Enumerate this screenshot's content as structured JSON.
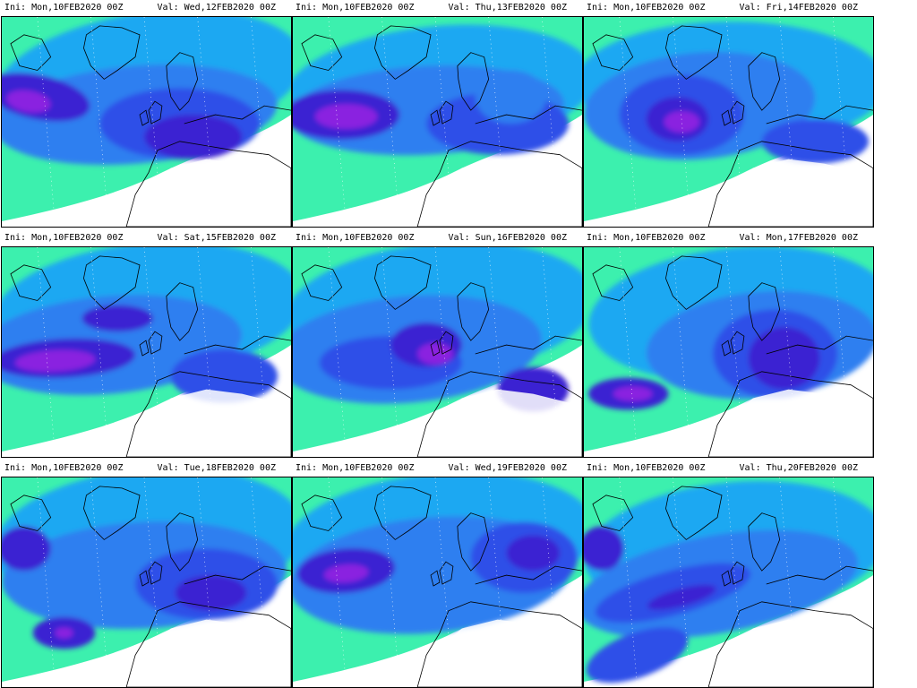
{
  "colors": {
    "background": "#ffffff",
    "frame": "#000000",
    "coast": "#000000",
    "scale": [
      "#3cf0ae",
      "#22d6e6",
      "#1fa8f2",
      "#2f7ff0",
      "#2f4fe8",
      "#3a22d2",
      "#8a22e0",
      "#e03cf0"
    ]
  },
  "panels": [
    {
      "ini_label": "Ini:",
      "ini": "Mon,10FEB2020 00Z",
      "val_label": "Val:",
      "val": "Wed,12FEB2020 00Z"
    },
    {
      "ini_label": "Ini:",
      "ini": "Mon,10FEB2020 00Z",
      "val_label": "Val:",
      "val": "Thu,13FEB2020 00Z"
    },
    {
      "ini_label": "Ini:",
      "ini": "Mon,10FEB2020 00Z",
      "val_label": "Val:",
      "val": "Fri,14FEB2020 00Z"
    },
    {
      "ini_label": "Ini:",
      "ini": "Mon,10FEB2020 00Z",
      "val_label": "Val:",
      "val": "Sat,15FEB2020 00Z"
    },
    {
      "ini_label": "Ini:",
      "ini": "Mon,10FEB2020 00Z",
      "val_label": "Val:",
      "val": "Sun,16FEB2020 00Z"
    },
    {
      "ini_label": "Ini:",
      "ini": "Mon,10FEB2020 00Z",
      "val_label": "Val:",
      "val": "Mon,17FEB2020 00Z"
    },
    {
      "ini_label": "Ini:",
      "ini": "Mon,10FEB2020 00Z",
      "val_label": "Val:",
      "val": "Tue,18FEB2020 00Z"
    },
    {
      "ini_label": "Ini:",
      "ini": "Mon,10FEB2020 00Z",
      "val_label": "Val:",
      "val": "Wed,19FEB2020 00Z"
    },
    {
      "ini_label": "Ini:",
      "ini": "Mon,10FEB2020 00Z",
      "val_label": "Val:",
      "val": "Thu,20FEB2020 00Z"
    }
  ]
}
